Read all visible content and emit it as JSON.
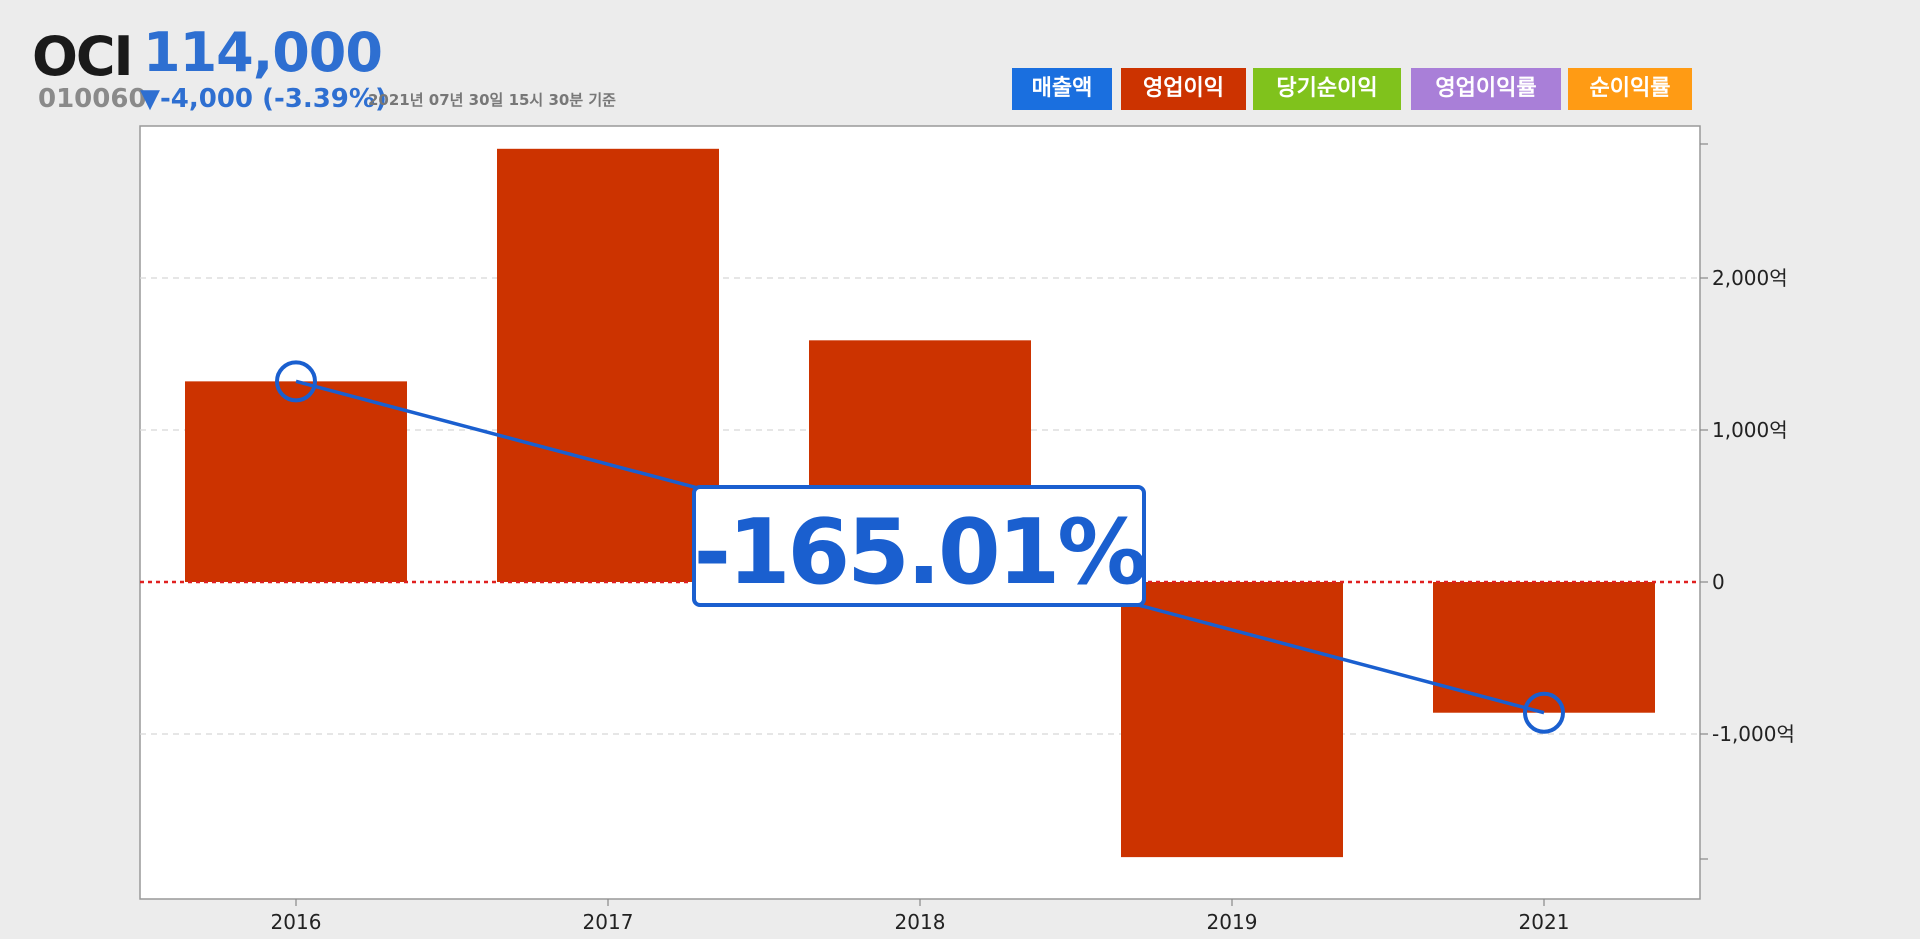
{
  "header": {
    "company": "OCI",
    "price": "114,000",
    "code": "010060",
    "change": "▼-4,000 (-3.39%)",
    "as_of": "2021년 07년 30일 15시 30분 기준"
  },
  "legend": [
    {
      "label": "매출액",
      "color": "#1a6fdf"
    },
    {
      "label": "영업이익",
      "color": "#cc3300"
    },
    {
      "label": "당기순이익",
      "color": "#80c21c"
    },
    {
      "label": "영업이익률",
      "color": "#a97fd8"
    },
    {
      "label": "순이익률",
      "color": "#ff9b14"
    }
  ],
  "chart_data": {
    "type": "bar",
    "categories": [
      "2016",
      "2017",
      "2018",
      "2019",
      "2021"
    ],
    "series": [
      {
        "values": [
          1320,
          2850,
          1590,
          -1810,
          -860
        ],
        "color": "#cc3300"
      }
    ],
    "highlight_line": {
      "from_index": 0,
      "to_index": 4,
      "color": "#1a5fcf"
    },
    "annotation": "-165.01%",
    "y_axis": {
      "ticks": [
        2000,
        1000,
        0,
        -1000
      ],
      "tick_labels": [
        "2,000억",
        "1,000억",
        "0",
        "-1,000억"
      ],
      "ylim": [
        -2050,
        2950
      ]
    },
    "grid": true,
    "zero_line_color": "#e02020"
  }
}
